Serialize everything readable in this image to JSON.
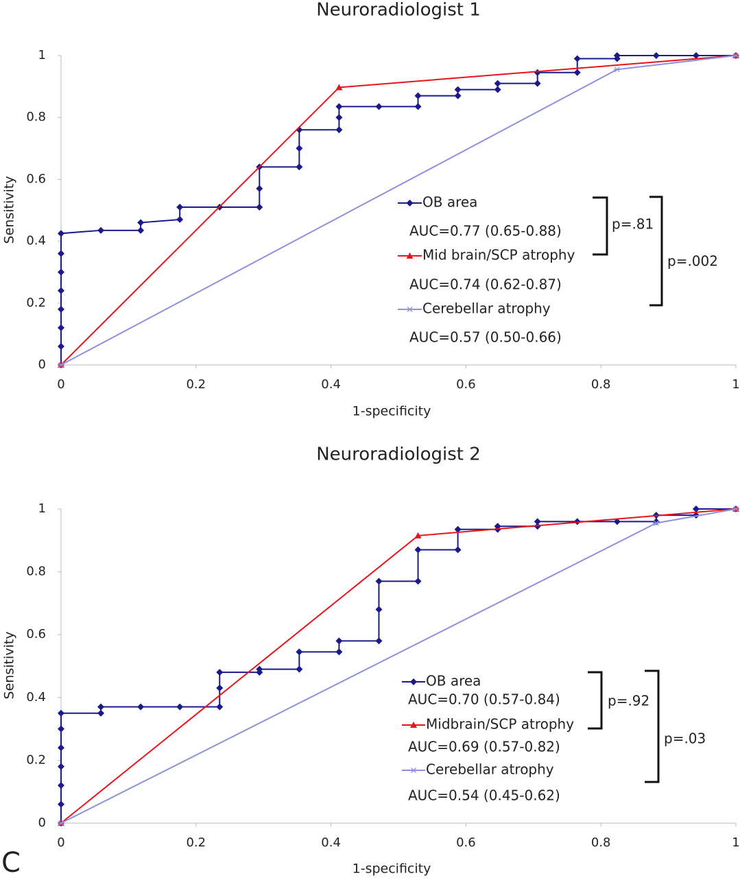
{
  "panel_label": "C",
  "chart_data": [
    {
      "type": "line",
      "title": "Neuroradiologist 1",
      "x_label": "1-specificity",
      "y_label": "Sensitivity",
      "xlim": [
        0,
        1
      ],
      "ylim": [
        0,
        1
      ],
      "xticks": [
        0,
        0.2,
        0.4,
        0.6,
        0.8,
        1
      ],
      "yticks": [
        0,
        0.2,
        0.4,
        0.6,
        0.8,
        1
      ],
      "series": [
        {
          "name": "OB area",
          "color": "#1a1a8c",
          "marker": "diamond",
          "x": [
            0,
            0,
            0,
            0,
            0,
            0,
            0,
            0,
            0.059,
            0.118,
            0.118,
            0.176,
            0.176,
            0.235,
            0.294,
            0.294,
            0.294,
            0.353,
            0.353,
            0.353,
            0.412,
            0.412,
            0.412,
            0.471,
            0.529,
            0.529,
            0.588,
            0.588,
            0.647,
            0.647,
            0.706,
            0.706,
            0.765,
            0.765,
            0.824,
            0.824,
            0.882,
            0.941,
            1
          ],
          "values": [
            0,
            0.06,
            0.12,
            0.18,
            0.24,
            0.3,
            0.36,
            0.425,
            0.435,
            0.435,
            0.46,
            0.47,
            0.51,
            0.51,
            0.51,
            0.57,
            0.64,
            0.64,
            0.7,
            0.76,
            0.76,
            0.8,
            0.835,
            0.835,
            0.835,
            0.87,
            0.87,
            0.89,
            0.89,
            0.91,
            0.91,
            0.945,
            0.945,
            0.99,
            0.99,
            1,
            1,
            1,
            1
          ]
        },
        {
          "name": "Mid brain/SCP atrophy",
          "color": "#e8131b",
          "marker": "triangle",
          "x": [
            0,
            0.412,
            1
          ],
          "values": [
            0,
            0.897,
            1
          ]
        },
        {
          "name": "Cerebellar atrophy",
          "color": "#8f8fe0",
          "marker": "star",
          "x": [
            0,
            0.824,
            1
          ],
          "values": [
            0,
            0.955,
            1
          ]
        }
      ],
      "annotations": [
        {
          "text": "AUC=0.77 (0.65-0.88)",
          "color": "#4472c4"
        },
        {
          "text": "AUC=0.74 (0.62-0.87)",
          "color": "#e8131b"
        },
        {
          "text": "AUC=0.57 (0.50-0.66)",
          "color": "#5eb2e8"
        },
        {
          "text": "p=.81",
          "color": "#222222"
        },
        {
          "text": "p=.002",
          "color": "#222222"
        }
      ]
    },
    {
      "type": "line",
      "title": "Neuroradiologist 2",
      "x_label": "1-specificity",
      "y_label": "Sensitivity",
      "xlim": [
        0,
        1
      ],
      "ylim": [
        0,
        1
      ],
      "xticks": [
        0,
        0.2,
        0.4,
        0.6,
        0.8,
        1
      ],
      "yticks": [
        0,
        0.2,
        0.4,
        0.6,
        0.8,
        1
      ],
      "series": [
        {
          "name": "OB area",
          "color": "#1a1a8c",
          "marker": "diamond",
          "x": [
            0,
            0,
            0,
            0,
            0,
            0,
            0,
            0.059,
            0.059,
            0.118,
            0.176,
            0.235,
            0.235,
            0.235,
            0.294,
            0.294,
            0.353,
            0.353,
            0.412,
            0.412,
            0.471,
            0.471,
            0.471,
            0.529,
            0.529,
            0.588,
            0.588,
            0.647,
            0.647,
            0.706,
            0.706,
            0.765,
            0.824,
            0.882,
            0.882,
            0.941,
            0.941,
            1
          ],
          "values": [
            0,
            0.06,
            0.12,
            0.18,
            0.24,
            0.3,
            0.35,
            0.35,
            0.37,
            0.37,
            0.37,
            0.37,
            0.43,
            0.48,
            0.48,
            0.49,
            0.49,
            0.545,
            0.545,
            0.58,
            0.58,
            0.68,
            0.77,
            0.77,
            0.87,
            0.87,
            0.935,
            0.935,
            0.945,
            0.945,
            0.96,
            0.96,
            0.96,
            0.96,
            0.98,
            0.98,
            1,
            1
          ]
        },
        {
          "name": "Midbrain/SCP atrophy",
          "color": "#e8131b",
          "marker": "triangle",
          "x": [
            0,
            0.529,
            1
          ],
          "values": [
            0,
            0.915,
            1
          ]
        },
        {
          "name": "Cerebellar atrophy",
          "color": "#8f8fe0",
          "marker": "star",
          "x": [
            0,
            0.882,
            1
          ],
          "values": [
            0,
            0.955,
            1
          ]
        }
      ],
      "annotations": [
        {
          "text": "AUC=0.70 (0.57-0.84)",
          "color": "#4472c4"
        },
        {
          "text": "AUC=0.69 (0.57-0.82)",
          "color": "#e8131b"
        },
        {
          "text": "AUC=0.54 (0.45-0.62)",
          "color": "#5eb2e8"
        },
        {
          "text": "p=.92",
          "color": "#222222"
        },
        {
          "text": "p=.03",
          "color": "#222222"
        }
      ]
    }
  ]
}
